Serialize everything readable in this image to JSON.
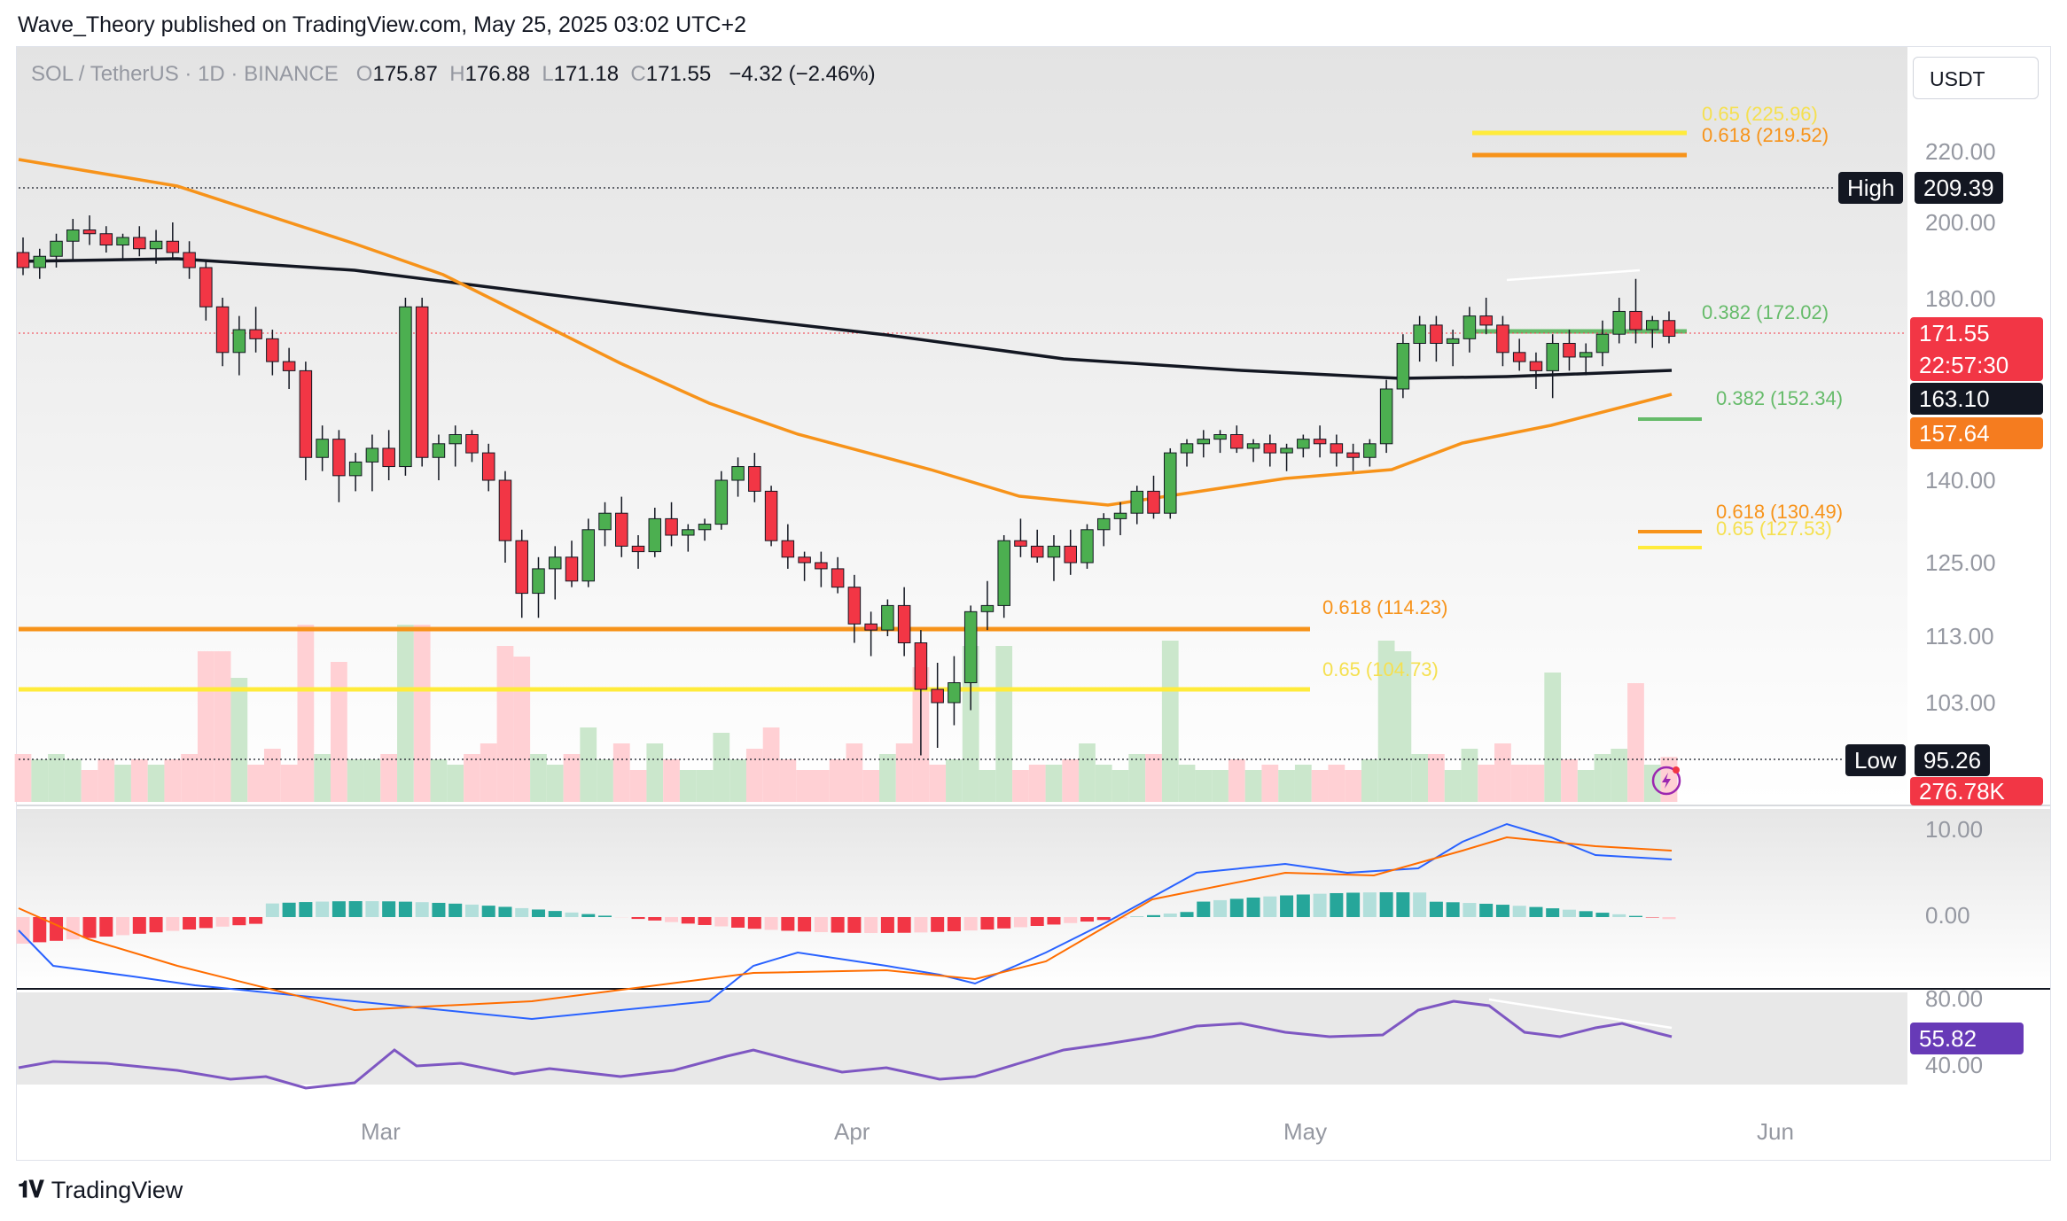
{
  "header": {
    "text": "Wave_Theory published on TradingView.com, May 25, 2025 03:02 UTC+2"
  },
  "legend": {
    "symbol": "SOL / TetherUS · 1D · BINANCE",
    "o_label": "O",
    "o": "175.87",
    "h_label": "H",
    "h": "176.88",
    "l_label": "L",
    "l": "171.18",
    "c_label": "C",
    "c": "171.55",
    "change": "−4.32 (−2.46%)"
  },
  "currency_button": "USDT",
  "price_axis": [
    "220.00",
    "200.00",
    "180.00",
    "140.00",
    "125.00",
    "113.00",
    "103.00"
  ],
  "macd_axis": [
    "10.00",
    "0.00"
  ],
  "rsi_axis": [
    "80.00",
    "40.00"
  ],
  "time_axis": [
    "Mar",
    "Apr",
    "May",
    "Jun"
  ],
  "tags": {
    "high_label": "High",
    "high_value": "209.39",
    "low_label": "Low",
    "low_value": "95.26",
    "last_price": "171.55",
    "countdown": "22:57:30",
    "ma_black": "163.10",
    "ma_orange": "157.64",
    "volume": "276.78K",
    "rsi": "55.82"
  },
  "fib_labels": {
    "top_065": "0.65 (225.96)",
    "top_0618": "0.618 (219.52)",
    "r_0382_a": "0.382 (172.02)",
    "r_0382_b": "0.382 (152.34)",
    "r_0618": "0.618 (130.49)",
    "r_065": "0.65 (127.53)",
    "l_0618": "0.618 (114.23)",
    "l_065": "0.65 (104.73)"
  },
  "footer": {
    "brand": "TradingView"
  },
  "colors": {
    "up": "#26a69a",
    "up_candle": "#4caf50",
    "down": "#f23645",
    "orange": "#f7931a",
    "yellow": "#ffeb3b",
    "fib_green": "#66bb6a",
    "macd": "#2962ff",
    "signal": "#ff6d00",
    "rsi": "#7e57c2"
  },
  "chart_data": {
    "type": "candlestick",
    "title": "SOL / TetherUS · 1D · BINANCE",
    "x_ticks": [
      "Mar",
      "Apr",
      "May",
      "Jun"
    ],
    "ylim": [
      95,
      230
    ],
    "high": 209.39,
    "low": 95.26,
    "last_close": 171.55,
    "candles": [
      [
        192,
        196,
        186,
        188
      ],
      [
        188,
        193,
        185,
        191
      ],
      [
        191,
        197,
        188,
        195
      ],
      [
        195,
        201,
        190,
        198
      ],
      [
        198,
        202,
        194,
        197
      ],
      [
        197,
        199,
        192,
        194
      ],
      [
        194,
        197,
        190,
        196
      ],
      [
        196,
        199,
        191,
        193
      ],
      [
        193,
        198,
        189,
        195
      ],
      [
        195,
        200,
        190,
        192
      ],
      [
        192,
        195,
        185,
        188
      ],
      [
        188,
        190,
        175,
        178
      ],
      [
        178,
        180,
        165,
        168
      ],
      [
        168,
        176,
        163,
        173
      ],
      [
        173,
        178,
        168,
        171
      ],
      [
        171,
        173,
        163,
        166
      ],
      [
        166,
        169,
        160,
        164
      ],
      [
        164,
        166,
        140,
        145
      ],
      [
        145,
        152,
        142,
        149
      ],
      [
        149,
        151,
        136,
        141
      ],
      [
        141,
        146,
        138,
        144
      ],
      [
        144,
        150,
        138,
        147
      ],
      [
        147,
        151,
        140,
        143
      ],
      [
        143,
        180,
        141,
        178
      ],
      [
        178,
        180,
        143,
        145
      ],
      [
        145,
        150,
        140,
        148
      ],
      [
        148,
        152,
        143,
        150
      ],
      [
        150,
        151,
        144,
        146
      ],
      [
        146,
        148,
        138,
        140
      ],
      [
        140,
        142,
        125,
        129
      ],
      [
        129,
        131,
        116,
        120
      ],
      [
        120,
        126,
        116,
        124
      ],
      [
        124,
        128,
        119,
        126
      ],
      [
        126,
        129,
        121,
        122
      ],
      [
        122,
        133,
        121,
        131
      ],
      [
        131,
        136,
        128,
        134
      ],
      [
        134,
        137,
        126,
        128
      ],
      [
        128,
        130,
        124,
        127
      ],
      [
        127,
        135,
        126,
        133
      ],
      [
        133,
        136,
        128,
        130
      ],
      [
        130,
        132,
        127,
        131
      ],
      [
        131,
        133,
        129,
        132
      ],
      [
        132,
        142,
        131,
        140
      ],
      [
        140,
        145,
        137,
        143
      ],
      [
        143,
        146,
        136,
        138
      ],
      [
        138,
        139,
        128,
        129
      ],
      [
        129,
        132,
        124,
        126
      ],
      [
        126,
        127,
        122,
        125
      ],
      [
        125,
        127,
        121,
        124
      ],
      [
        124,
        126,
        120,
        121
      ],
      [
        121,
        123,
        112,
        115
      ],
      [
        115,
        117,
        110,
        114
      ],
      [
        114,
        119,
        113,
        118
      ],
      [
        118,
        121,
        110,
        112
      ],
      [
        112,
        114,
        96,
        105
      ],
      [
        105,
        109,
        97,
        103
      ],
      [
        103,
        110,
        100,
        106
      ],
      [
        106,
        118,
        102,
        117
      ],
      [
        117,
        122,
        114,
        118
      ],
      [
        118,
        130,
        116,
        129
      ],
      [
        129,
        133,
        126,
        128
      ],
      [
        128,
        131,
        125,
        126
      ],
      [
        126,
        130,
        122,
        128
      ],
      [
        128,
        131,
        123,
        125
      ],
      [
        125,
        132,
        124,
        131
      ],
      [
        131,
        134,
        128,
        133
      ],
      [
        133,
        136,
        130,
        134
      ],
      [
        134,
        139,
        132,
        138
      ],
      [
        138,
        141,
        133,
        134
      ],
      [
        134,
        147,
        133,
        146
      ],
      [
        146,
        149,
        143,
        148
      ],
      [
        148,
        151,
        145,
        149
      ],
      [
        149,
        151,
        146,
        150
      ],
      [
        150,
        152,
        146,
        147
      ],
      [
        147,
        149,
        144,
        148
      ],
      [
        148,
        150,
        143,
        146
      ],
      [
        146,
        148,
        142,
        147
      ],
      [
        147,
        150,
        145,
        149
      ],
      [
        149,
        152,
        145,
        148
      ],
      [
        148,
        150,
        143,
        146
      ],
      [
        146,
        148,
        142,
        145
      ],
      [
        145,
        149,
        143,
        148
      ],
      [
        148,
        162,
        146,
        160
      ],
      [
        160,
        172,
        158,
        170
      ],
      [
        170,
        176,
        166,
        174
      ],
      [
        174,
        176,
        166,
        170
      ],
      [
        170,
        173,
        165,
        171
      ],
      [
        171,
        178,
        168,
        176
      ],
      [
        176,
        180,
        172,
        174
      ],
      [
        174,
        176,
        165,
        168
      ],
      [
        168,
        171,
        164,
        166
      ],
      [
        166,
        168,
        160,
        164
      ],
      [
        164,
        172,
        158,
        170
      ],
      [
        170,
        173,
        164,
        167
      ],
      [
        167,
        170,
        163,
        168
      ],
      [
        168,
        175,
        165,
        172
      ],
      [
        172,
        180,
        170,
        177
      ],
      [
        177,
        185,
        170,
        173
      ],
      [
        173,
        176,
        169,
        175
      ],
      [
        175,
        177,
        170,
        171.55
      ]
    ]
  }
}
